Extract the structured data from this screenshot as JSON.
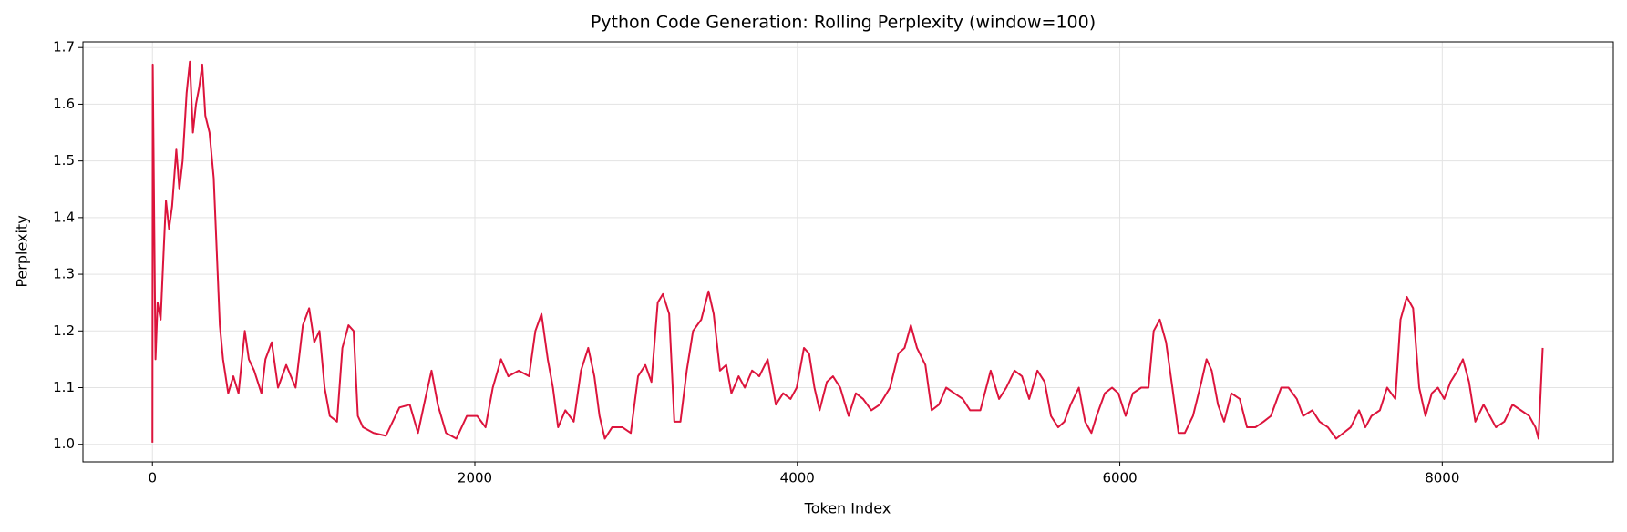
{
  "chart_data": {
    "type": "line",
    "title": "Python Code Generation: Rolling Perplexity (window=100)",
    "xlabel": "Token Index",
    "ylabel": "Perplexity",
    "xlim": [
      -431,
      9061
    ],
    "ylim": [
      0.969,
      1.71
    ],
    "xticks": [
      0,
      2000,
      4000,
      6000,
      8000
    ],
    "yticks": [
      {
        "value": 1.0,
        "label": "1.0"
      },
      1.1,
      1.2,
      1.3,
      1.4,
      1.5,
      1.6,
      1.7
    ],
    "grid": true,
    "series": [
      {
        "name": "Rolling Perplexity",
        "color": "#dc143c",
        "x": [
          0,
          2,
          19,
          32,
          51,
          71,
          84,
          103,
          122,
          148,
          167,
          187,
          212,
          232,
          251,
          270,
          290,
          309,
          328,
          354,
          380,
          399,
          418,
          438,
          470,
          502,
          534,
          573,
          598,
          631,
          676,
          701,
          740,
          779,
          830,
          888,
          933,
          972,
          1004,
          1036,
          1068,
          1100,
          1145,
          1178,
          1216,
          1248,
          1274,
          1306,
          1371,
          1448,
          1532,
          1596,
          1647,
          1692,
          1731,
          1770,
          1821,
          1885,
          1950,
          2014,
          2066,
          2111,
          2162,
          2207,
          2272,
          2336,
          2375,
          2413,
          2452,
          2484,
          2516,
          2561,
          2613,
          2658,
          2703,
          2741,
          2773,
          2806,
          2851,
          2915,
          2967,
          3012,
          3057,
          3095,
          3134,
          3166,
          3205,
          3237,
          3275,
          3314,
          3353,
          3404,
          3449,
          3481,
          3520,
          3559,
          3591,
          3636,
          3674,
          3719,
          3764,
          3816,
          3867,
          3912,
          3958,
          3996,
          4041,
          4073,
          4106,
          4138,
          4183,
          4221,
          4266,
          4318,
          4363,
          4408,
          4459,
          4511,
          4575,
          4627,
          4665,
          4704,
          4742,
          4794,
          4833,
          4878,
          4923,
          4974,
          5026,
          5071,
          5135,
          5199,
          5251,
          5296,
          5347,
          5393,
          5438,
          5489,
          5534,
          5573,
          5618,
          5656,
          5695,
          5746,
          5785,
          5824,
          5856,
          5907,
          5952,
          5991,
          6036,
          6081,
          6133,
          6178,
          6210,
          6248,
          6287,
          6326,
          6364,
          6403,
          6454,
          6506,
          6538,
          6570,
          6609,
          6647,
          6692,
          6744,
          6789,
          6841,
          6892,
          6937,
          7001,
          7046,
          7098,
          7137,
          7194,
          7239,
          7291,
          7342,
          7387,
          7432,
          7484,
          7523,
          7561,
          7613,
          7658,
          7709,
          7741,
          7780,
          7819,
          7857,
          7896,
          7935,
          7973,
          8012,
          8051,
          8095,
          8128,
          8166,
          8205,
          8256,
          8295,
          8333,
          8385,
          8436,
          8488,
          8539,
          8578,
          8597,
          8610,
          8623
        ],
        "values": [
          1.003,
          1.67,
          1.15,
          1.25,
          1.22,
          1.35,
          1.43,
          1.38,
          1.42,
          1.52,
          1.45,
          1.5,
          1.62,
          1.675,
          1.55,
          1.6,
          1.63,
          1.67,
          1.58,
          1.55,
          1.47,
          1.34,
          1.21,
          1.15,
          1.09,
          1.12,
          1.09,
          1.2,
          1.15,
          1.13,
          1.09,
          1.15,
          1.18,
          1.1,
          1.14,
          1.1,
          1.21,
          1.24,
          1.18,
          1.2,
          1.1,
          1.05,
          1.04,
          1.17,
          1.21,
          1.2,
          1.05,
          1.03,
          1.02,
          1.015,
          1.065,
          1.07,
          1.02,
          1.08,
          1.13,
          1.07,
          1.02,
          1.01,
          1.05,
          1.05,
          1.03,
          1.1,
          1.15,
          1.12,
          1.13,
          1.12,
          1.2,
          1.23,
          1.15,
          1.1,
          1.03,
          1.06,
          1.04,
          1.13,
          1.17,
          1.12,
          1.05,
          1.01,
          1.03,
          1.03,
          1.02,
          1.12,
          1.14,
          1.11,
          1.25,
          1.265,
          1.23,
          1.04,
          1.04,
          1.13,
          1.2,
          1.22,
          1.27,
          1.23,
          1.13,
          1.14,
          1.09,
          1.12,
          1.1,
          1.13,
          1.12,
          1.15,
          1.07,
          1.09,
          1.08,
          1.1,
          1.17,
          1.16,
          1.1,
          1.06,
          1.11,
          1.12,
          1.1,
          1.05,
          1.09,
          1.08,
          1.06,
          1.07,
          1.1,
          1.16,
          1.17,
          1.21,
          1.17,
          1.14,
          1.06,
          1.07,
          1.1,
          1.09,
          1.08,
          1.06,
          1.06,
          1.13,
          1.08,
          1.1,
          1.13,
          1.12,
          1.08,
          1.13,
          1.11,
          1.05,
          1.03,
          1.04,
          1.07,
          1.1,
          1.04,
          1.02,
          1.05,
          1.09,
          1.1,
          1.09,
          1.05,
          1.09,
          1.1,
          1.1,
          1.2,
          1.22,
          1.18,
          1.1,
          1.02,
          1.02,
          1.05,
          1.11,
          1.15,
          1.13,
          1.07,
          1.04,
          1.09,
          1.08,
          1.03,
          1.03,
          1.04,
          1.05,
          1.1,
          1.1,
          1.08,
          1.05,
          1.06,
          1.04,
          1.03,
          1.01,
          1.02,
          1.03,
          1.06,
          1.03,
          1.05,
          1.06,
          1.1,
          1.08,
          1.22,
          1.26,
          1.24,
          1.1,
          1.05,
          1.09,
          1.1,
          1.08,
          1.11,
          1.13,
          1.15,
          1.11,
          1.04,
          1.07,
          1.05,
          1.03,
          1.04,
          1.07,
          1.06,
          1.05,
          1.03,
          1.01,
          1.09,
          1.17
        ]
      }
    ]
  }
}
